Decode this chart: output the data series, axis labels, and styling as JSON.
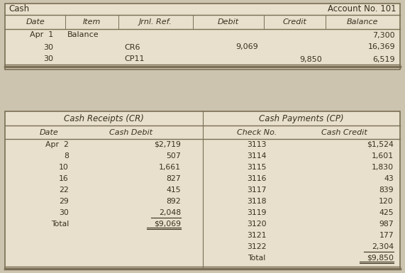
{
  "bg_color": "#ccc4ae",
  "table_bg": "#e8e0cc",
  "text_color": "#3a2e1e",
  "border_color": "#7a6e55",
  "top_table": {
    "title_left": "Cash",
    "title_right": "Account No. 101",
    "headers": [
      "Date",
      "Item",
      "Jrnl. Ref.",
      "Debit",
      "Credit",
      "Balance"
    ],
    "rows": [
      [
        "Apr  1",
        "Balance",
        "",
        "",
        "",
        "7,300"
      ],
      [
        "30",
        "",
        "CR6",
        "9,069",
        "",
        "16,369"
      ],
      [
        "30",
        "",
        "CP11",
        "",
        "9,850",
        "6,519"
      ]
    ]
  },
  "bottom_table": {
    "cr_header": "Cash Receipts (CR)",
    "cp_header": "Cash Payments (CP)",
    "sub_headers": [
      "Date",
      "Cash Debit",
      "Check No.",
      "Cash Credit"
    ],
    "cr_rows": [
      [
        "Apr  2",
        "$2,719",
        false,
        false
      ],
      [
        "8",
        "507",
        false,
        false
      ],
      [
        "10",
        "1,661",
        false,
        false
      ],
      [
        "16",
        "827",
        false,
        false
      ],
      [
        "22",
        "415",
        false,
        false
      ],
      [
        "29",
        "892",
        false,
        false
      ],
      [
        "30",
        "2,048",
        true,
        false
      ],
      [
        "Total",
        "$9,069",
        false,
        true
      ]
    ],
    "cp_rows": [
      [
        "3113",
        "$1,524",
        false,
        false
      ],
      [
        "3114",
        "1,601",
        false,
        false
      ],
      [
        "3115",
        "1,830",
        false,
        false
      ],
      [
        "3116",
        "43",
        false,
        false
      ],
      [
        "3117",
        "839",
        false,
        false
      ],
      [
        "3118",
        "120",
        false,
        false
      ],
      [
        "3119",
        "425",
        false,
        false
      ],
      [
        "3120",
        "987",
        false,
        false
      ],
      [
        "3121",
        "177",
        false,
        false
      ],
      [
        "3122",
        "2,304",
        true,
        false
      ],
      [
        "Total",
        "$9,850",
        false,
        true
      ]
    ]
  }
}
